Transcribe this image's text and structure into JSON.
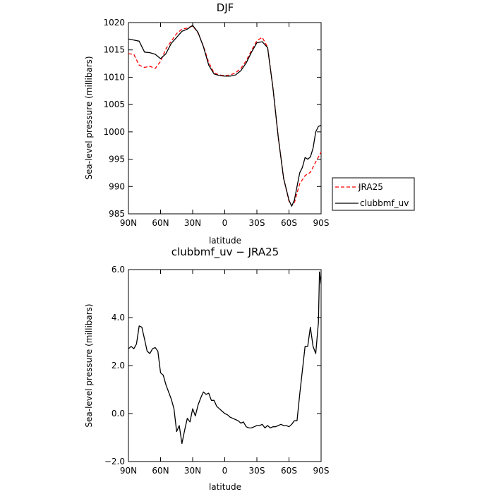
{
  "chart_data": [
    {
      "type": "line",
      "title": "DJF",
      "xlabel": "latitude",
      "ylabel": "Sea-level pressure (millibars)",
      "xlim": [
        90,
        -90
      ],
      "ylim": [
        985,
        1020
      ],
      "yticks": [
        "985",
        "990",
        "995",
        "1000",
        "1005",
        "1010",
        "1015",
        "1020"
      ],
      "ytick_values": [
        985,
        990,
        995,
        1000,
        1005,
        1010,
        1015,
        1020
      ],
      "xticks": [
        "90N",
        "60N",
        "30N",
        "0",
        "30S",
        "60S",
        "90S"
      ],
      "xtick_values": [
        90,
        60,
        30,
        0,
        -30,
        -60,
        -90
      ],
      "legend_position": "right",
      "legend": [
        {
          "label": "JRA25",
          "color": "#ff0000",
          "dash": "dashed"
        },
        {
          "label": "clubbmf_uv",
          "color": "#000000",
          "dash": "solid"
        }
      ],
      "series": [
        {
          "name": "JRA25",
          "color": "#ff0000",
          "dash": "dashed",
          "x": [
            90,
            85,
            80,
            75,
            70,
            65,
            60,
            55,
            50,
            45,
            40,
            35,
            30,
            25,
            20,
            15,
            10,
            5,
            0,
            -5,
            -10,
            -15,
            -20,
            -25,
            -30,
            -35,
            -40,
            -45,
            -50,
            -55,
            -60,
            -62.5,
            -65,
            -67.5,
            -70,
            -75,
            -80,
            -85,
            -90
          ],
          "y": [
            1014.3,
            1014.2,
            1012.2,
            1011.8,
            1012.0,
            1011.6,
            1012.9,
            1015.2,
            1016.6,
            1018.0,
            1018.8,
            1019.0,
            1019.4,
            1018.1,
            1015.7,
            1012.7,
            1010.8,
            1010.4,
            1010.3,
            1010.4,
            1010.8,
            1011.6,
            1013.0,
            1014.9,
            1016.7,
            1017.3,
            1015.5,
            1008.0,
            999.0,
            991.5,
            987.3,
            986.5,
            987.0,
            988.8,
            990.5,
            992.0,
            992.6,
            994.5,
            996.3
          ]
        },
        {
          "name": "clubbmf_uv",
          "color": "#000000",
          "dash": "solid",
          "x": [
            90,
            85,
            80,
            75,
            70,
            65,
            60,
            55,
            50,
            45,
            40,
            35,
            30,
            25,
            20,
            15,
            10,
            5,
            0,
            -5,
            -10,
            -15,
            -20,
            -25,
            -30,
            -35,
            -40,
            -45,
            -50,
            -55,
            -60,
            -62.5,
            -65,
            -70,
            -72.5,
            -75,
            -77.5,
            -80,
            -82.5,
            -85,
            -87.5,
            -90
          ],
          "y": [
            1017.0,
            1016.8,
            1016.6,
            1014.6,
            1014.5,
            1014.2,
            1013.4,
            1014.3,
            1016.2,
            1017.3,
            1018.4,
            1018.8,
            1019.5,
            1018.2,
            1015.6,
            1012.2,
            1010.6,
            1010.3,
            1010.2,
            1010.2,
            1010.4,
            1011.2,
            1012.6,
            1014.6,
            1016.3,
            1016.5,
            1015.4,
            1008.0,
            999.0,
            991.5,
            987.5,
            986.4,
            987.5,
            992.5,
            993.5,
            995.3,
            995.0,
            995.4,
            997.0,
            1000.0,
            1001.0,
            1001.2
          ]
        }
      ]
    },
    {
      "type": "line",
      "title": "clubbmf_uv − JRA25",
      "xlabel": "latitude",
      "ylabel": "Sea-level pressure (millibars)",
      "xlim": [
        90,
        -90
      ],
      "ylim": [
        -2.0,
        6.0
      ],
      "yticks": [
        "−2.0",
        "0.0",
        "2.0",
        "4.0",
        "6.0"
      ],
      "ytick_values": [
        -2.0,
        0.0,
        2.0,
        4.0,
        6.0
      ],
      "xticks": [
        "90N",
        "60N",
        "30N",
        "0",
        "30S",
        "60S",
        "90S"
      ],
      "xtick_values": [
        90,
        60,
        30,
        0,
        -30,
        -60,
        -90
      ],
      "series": [
        {
          "name": "",
          "color": "#000000",
          "dash": "solid",
          "x": [
            90,
            87.5,
            85,
            82.5,
            80,
            77.5,
            75,
            72.5,
            70,
            67.5,
            65,
            62.5,
            60,
            57.5,
            55,
            52.5,
            50,
            47.5,
            45,
            42.5,
            40,
            37.5,
            35,
            32.5,
            30,
            27.5,
            25,
            22.5,
            20,
            17.5,
            15,
            12.5,
            10,
            7.5,
            5,
            2.5,
            0,
            -2.5,
            -5,
            -7.5,
            -10,
            -12.5,
            -15,
            -17.5,
            -20,
            -22.5,
            -25,
            -27.5,
            -30,
            -32.5,
            -35,
            -37.5,
            -40,
            -42.5,
            -45,
            -47.5,
            -50,
            -52.5,
            -55,
            -57.5,
            -60,
            -62.5,
            -65,
            -67.5,
            -70,
            -72.5,
            -75,
            -77.5,
            -80,
            -82.5,
            -85,
            -87.5,
            -88.5,
            -90
          ],
          "y": [
            2.7,
            2.8,
            2.7,
            2.9,
            3.65,
            3.6,
            3.1,
            2.6,
            2.5,
            2.7,
            2.75,
            2.6,
            1.7,
            1.6,
            1.2,
            0.9,
            0.6,
            0.2,
            -0.75,
            -0.5,
            -1.25,
            -0.7,
            -0.2,
            -0.35,
            0.2,
            -0.1,
            0.35,
            0.65,
            0.9,
            0.8,
            0.85,
            0.55,
            0.55,
            0.3,
            0.2,
            0.1,
            0.0,
            -0.05,
            -0.15,
            -0.2,
            -0.25,
            -0.3,
            -0.4,
            -0.35,
            -0.55,
            -0.6,
            -0.6,
            -0.55,
            -0.5,
            -0.5,
            -0.45,
            -0.6,
            -0.5,
            -0.6,
            -0.55,
            -0.55,
            -0.5,
            -0.45,
            -0.5,
            -0.5,
            -0.55,
            -0.45,
            -0.3,
            -0.3,
            0.8,
            1.8,
            2.8,
            2.8,
            3.6,
            2.8,
            2.5,
            3.8,
            5.9,
            5.4
          ]
        }
      ]
    }
  ]
}
